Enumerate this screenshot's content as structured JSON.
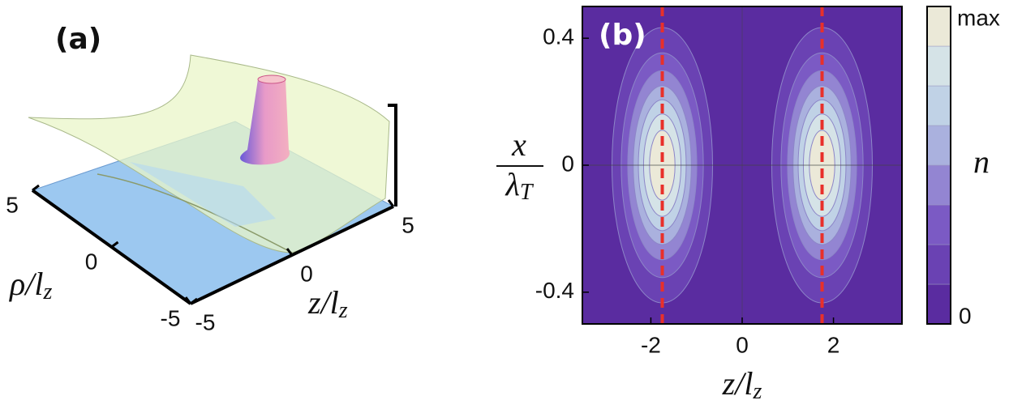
{
  "chart_data": [
    {
      "type": "surface3d",
      "panel_label": "(a)",
      "xlabel": [
        "ρ/l",
        "z"
      ],
      "ylabel": [
        "z/l",
        "z"
      ],
      "xlim": [
        -5,
        5
      ],
      "ylim": [
        -5,
        5
      ],
      "xticks": [
        5,
        0,
        -5
      ],
      "yticks": [
        -5,
        0,
        5
      ]
    },
    {
      "type": "contour",
      "panel_label": "(b)",
      "xlabel": [
        "z/l",
        "z"
      ],
      "ylabel": {
        "numerator": "x",
        "denominator": [
          "λ",
          "T"
        ]
      },
      "xlim": [
        -3.5,
        3.5
      ],
      "ylim": [
        -0.5,
        0.5
      ],
      "xticks": [
        -2,
        0,
        2
      ],
      "yticks": [
        -0.4,
        0,
        0.4
      ],
      "vlines": [
        -1.75,
        1.75
      ],
      "vline_color": "#e8302a",
      "colors": [
        "#5a2ca0",
        "#6a42b3",
        "#7b5ac4",
        "#9385d2",
        "#aab1de",
        "#c0d2e6",
        "#d5e3e7",
        "#ebe9d8"
      ],
      "colorbar": {
        "label": "n",
        "tick_labels": [
          "0",
          "max"
        ]
      }
    }
  ]
}
